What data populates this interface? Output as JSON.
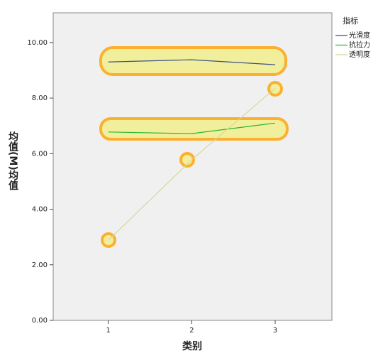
{
  "chart_data": {
    "type": "line",
    "x_label": "类别",
    "y_label": "均值(M)均值",
    "legend_title": "指标",
    "x": [
      1,
      2,
      3
    ],
    "xlim": [
      0.34,
      3.68
    ],
    "xticks": [
      1,
      2,
      3
    ],
    "ylim": [
      0,
      11.07
    ],
    "yticks": [
      {
        "value": 0,
        "label": "0.00"
      },
      {
        "value": 2,
        "label": "2.00"
      },
      {
        "value": 4,
        "label": "4.00"
      },
      {
        "value": 6,
        "label": "6.00"
      },
      {
        "value": 8,
        "label": "8.00"
      },
      {
        "value": 10,
        "label": "10.00"
      }
    ],
    "series": [
      {
        "name": "光滑度",
        "color": "#3e4f7c",
        "values": [
          9.3,
          9.38,
          9.2
        ]
      },
      {
        "name": "抗拉力",
        "color": "#2db52d",
        "values": [
          6.78,
          6.72,
          7.1
        ]
      },
      {
        "name": "透明度",
        "color": "#d6d6a0",
        "values": [
          2.88,
          5.78,
          8.35
        ]
      }
    ]
  }
}
